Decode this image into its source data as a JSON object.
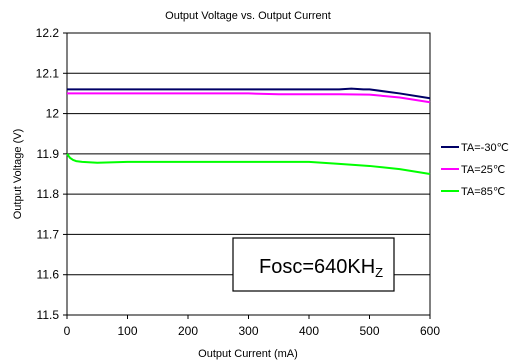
{
  "chart_data": {
    "type": "line",
    "title": "Output Voltage vs. Output Current",
    "xlabel": "Output Current (mA)",
    "ylabel": "Output Voltage (V)",
    "xlim": [
      0,
      600
    ],
    "ylim": [
      11.5,
      12.2
    ],
    "x_ticks": [
      "0",
      "100",
      "200",
      "300",
      "400",
      "500",
      "600"
    ],
    "y_ticks": [
      "11.5",
      "11.6",
      "11.7",
      "11.8",
      "11.9",
      "12",
      "12.1",
      "12.2"
    ],
    "grid": "horizontal",
    "legend_position": "right",
    "series": [
      {
        "name": "TA=-30℃",
        "color": "#000066",
        "x": [
          0,
          100,
          200,
          300,
          350,
          400,
          450,
          470,
          490,
          500,
          550,
          600
        ],
        "y": [
          12.06,
          12.06,
          12.06,
          12.06,
          12.06,
          12.06,
          12.06,
          12.062,
          12.06,
          12.06,
          12.05,
          12.038
        ]
      },
      {
        "name": "TA=25℃",
        "color": "#ff00ff",
        "x": [
          0,
          100,
          200,
          300,
          350,
          400,
          450,
          500,
          550,
          600
        ],
        "y": [
          12.05,
          12.05,
          12.05,
          12.05,
          12.048,
          12.048,
          12.048,
          12.047,
          12.04,
          12.028
        ]
      },
      {
        "name": "TA=85℃",
        "color": "#00ff00",
        "x": [
          0,
          5,
          10,
          15,
          25,
          50,
          100,
          200,
          300,
          400,
          450,
          500,
          550,
          600
        ],
        "y": [
          11.9,
          11.89,
          11.885,
          11.882,
          11.88,
          11.878,
          11.88,
          11.88,
          11.88,
          11.88,
          11.875,
          11.87,
          11.862,
          11.85
        ]
      }
    ],
    "annotation": {
      "main": "Fosc=640KH",
      "subscript": "Z"
    }
  }
}
